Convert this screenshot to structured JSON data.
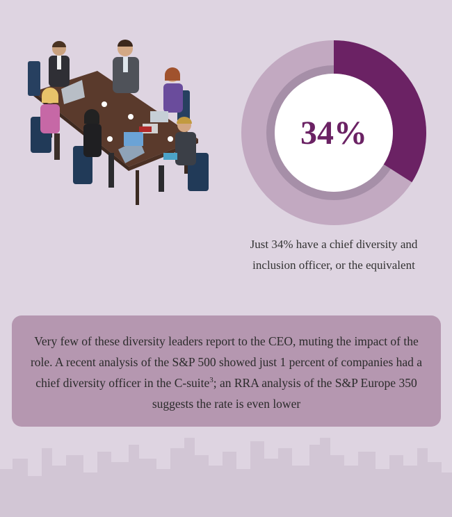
{
  "stat": {
    "value": "34%",
    "fraction": 0.34,
    "caption_line1": "Just 34% have a chief diversity and",
    "caption_line2": "inclusion officer, or the equivalent"
  },
  "body_text": {
    "part1": "Very few of these diversity leaders report to the CEO, muting the impact of the role. A recent analysis of the S&P 500 showed just 1 percent of companies had a chief diversity officer in the C-suite",
    "footnote": "3",
    "part2": "; an RRA analysis of the S&P Europe 350 suggests the rate is even lower"
  },
  "colors": {
    "background": "#ded4e1",
    "donut_fill": "#6b2264",
    "donut_track": "#c2a9c1",
    "donut_inner_ring": "#a68fa8",
    "box": "#b597b0",
    "skyline": "#d2c6d5"
  },
  "icons": [
    "meeting-illustration",
    "city-skyline"
  ]
}
